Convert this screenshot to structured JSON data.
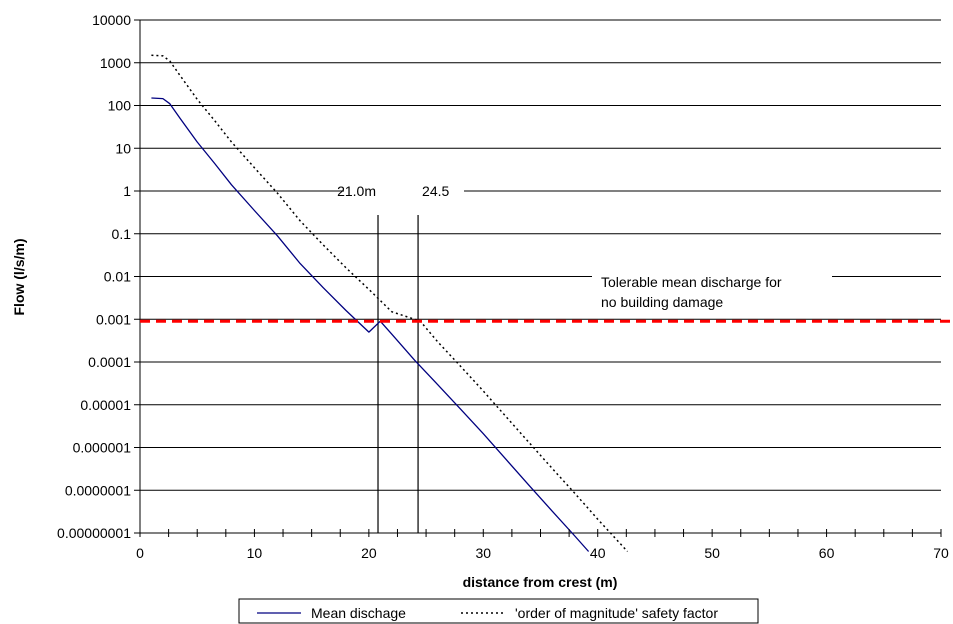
{
  "chart_data": {
    "type": "line",
    "xlabel": "distance from crest (m)",
    "ylabel": "Flow (l/s/m)",
    "xlim": [
      0,
      70
    ],
    "ylim": [
      1e-08,
      10000
    ],
    "y_scale": "log",
    "grid": "horizontal",
    "legend_position": "bottom",
    "x_ticks": [
      "0",
      "10",
      "20",
      "30",
      "40",
      "50",
      "60",
      "70"
    ],
    "y_ticks": [
      "0.00000001",
      "0.0000001",
      "0.000001",
      "0.00001",
      "0.0001",
      "0.001",
      "0.01",
      "0.1",
      "1",
      "10",
      "100",
      "1000",
      "10000"
    ],
    "series": [
      {
        "name": "Mean dischage",
        "style": "solid",
        "color": "#000080",
        "x": [
          1.0,
          2.0,
          2.6,
          3.5,
          5.0,
          6.5,
          8.0,
          10.0,
          12.0,
          14.0,
          16.0,
          18.0,
          20.0,
          21.0,
          22.0,
          24.0,
          26.0,
          28.0,
          30.0,
          32.0,
          34.0,
          36.0,
          38.0,
          39.2
        ],
        "y": [
          150,
          145,
          110,
          50,
          14,
          4.5,
          1.4,
          0.35,
          0.09,
          0.02,
          0.0055,
          0.0016,
          0.0005,
          0.0009,
          0.00045,
          0.00011,
          3e-05,
          8e-06,
          2.1e-06,
          5.2e-07,
          1.3e-07,
          3.3e-08,
          8.5e-09,
          3.7e-09
        ]
      },
      {
        "name": "'order of magnitude' safety factor",
        "style": "dotted",
        "color": "#000000",
        "x": [
          1.0,
          2.0,
          2.6,
          3.5,
          5.0,
          6.5,
          8.0,
          10.0,
          12.0,
          14.0,
          16.0,
          18.0,
          20.0,
          22.0,
          24.5,
          26.0,
          28.0,
          30.0,
          32.0,
          34.0,
          36.0,
          38.0,
          40.0,
          42.6
        ],
        "y": [
          1500,
          1450,
          1100,
          500,
          140,
          45,
          14,
          3.5,
          0.9,
          0.2,
          0.055,
          0.016,
          0.005,
          0.0015,
          0.0009,
          0.0003,
          8e-05,
          2.1e-05,
          5.2e-06,
          1.3e-06,
          3.3e-07,
          8.5e-08,
          2.1e-08,
          3.7e-09
        ]
      }
    ],
    "threshold": {
      "y": 0.0009,
      "color": "#ff0000",
      "style": "dashed"
    },
    "vlines": [
      {
        "x": 20.8,
        "label": "21.0m"
      },
      {
        "x": 24.3,
        "label": "24.5"
      }
    ],
    "annotation": {
      "lines": [
        "Tolerable mean discharge for",
        "no building damage"
      ]
    }
  }
}
